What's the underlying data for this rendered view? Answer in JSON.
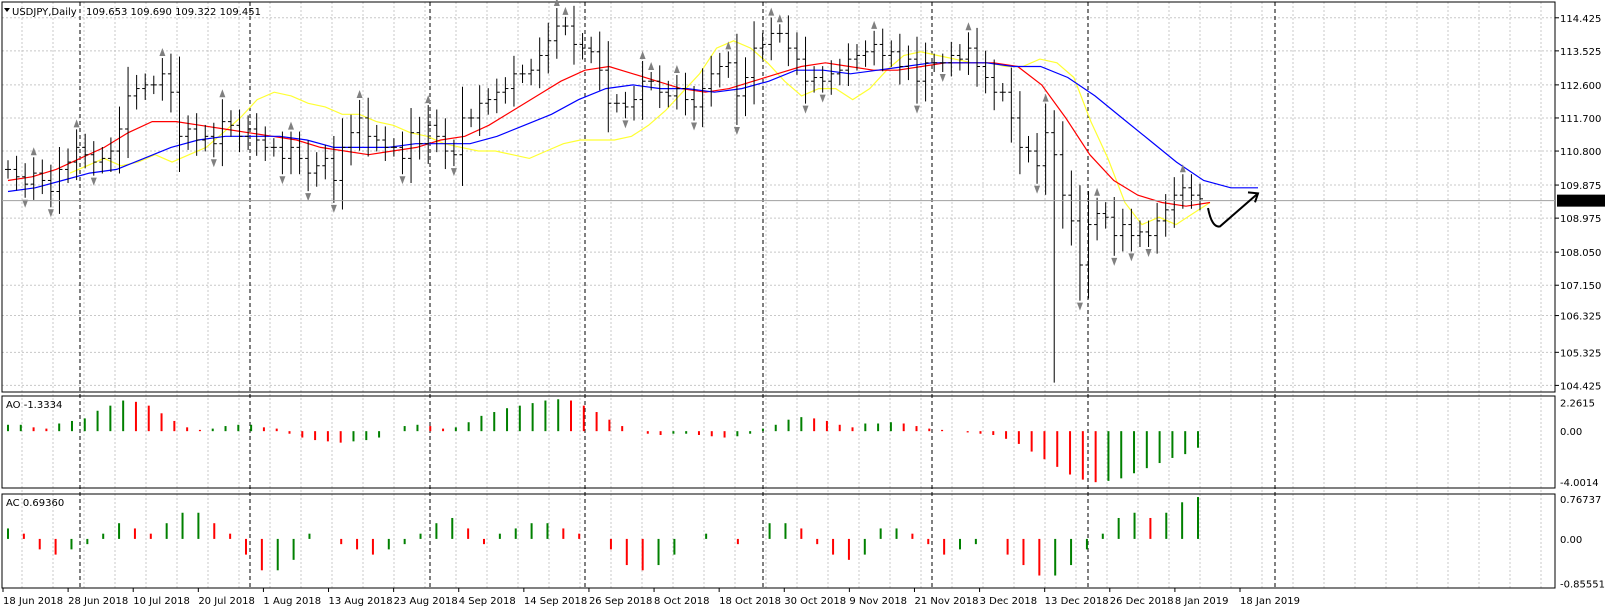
{
  "header": {
    "symbol": "USDJPY,Daily",
    "ohlc": "109.653 109.690 109.322 109.451"
  },
  "colors": {
    "background": "#ffffff",
    "grid": "#c8c8c8",
    "separator": "#000000",
    "bars": "#000000",
    "ma_fast": "#ffff33",
    "ma_mid": "#ff0000",
    "ma_slow": "#0000ff",
    "osc_up": "#008000",
    "osc_down": "#ff0000",
    "fractal": "#808080",
    "current_price_bg": "#000000",
    "current_price_text": "#ffffff"
  },
  "icons": {
    "fractal_up": "triangle-up",
    "fractal_down": "triangle-down",
    "arrow": "hand-drawn-arrow"
  },
  "chart_data": [
    {
      "type": "candlestick",
      "title": "USDJPY,Daily",
      "y_axis_labels": [
        "114.425",
        "113.525",
        "112.600",
        "111.700",
        "110.800",
        "109.875",
        "108.975",
        "108.050",
        "107.150",
        "106.325",
        "105.325",
        "104.425"
      ],
      "ylim": [
        104.3,
        114.8
      ],
      "current_price": "109.451",
      "x_tick_labels": [
        "18 Jun 2018",
        "28 Jun 2018",
        "10 Jul 2018",
        "20 Jul 2018",
        "1 Aug 2018",
        "13 Aug 2018",
        "23 Aug 2018",
        "4 Sep 2018",
        "14 Sep 2018",
        "26 Sep 2018",
        "8 Oct 2018",
        "18 Oct 2018",
        "30 Oct 2018",
        "9 Nov 2018",
        "21 Nov 2018",
        "3 Dec 2018",
        "13 Dec 2018",
        "26 Dec 2018",
        "8 Jan 2019",
        "18 Jan 2019"
      ],
      "close": [
        110.3,
        110.1,
        109.9,
        110.2,
        110.0,
        109.7,
        110.3,
        110.5,
        110.9,
        110.7,
        110.5,
        110.6,
        110.8,
        111.4,
        112.3,
        112.5,
        112.6,
        112.6,
        112.9,
        112.4,
        111.2,
        111.4,
        111.1,
        111.2,
        111.0,
        111.6,
        111.5,
        111.2,
        111.4,
        111.1,
        110.9,
        110.9,
        110.6,
        110.9,
        110.6,
        110.2,
        110.4,
        110.6,
        110.0,
        110.9,
        111.3,
        111.7,
        111.2,
        111.1,
        110.9,
        110.9,
        110.6,
        111.3,
        111.0,
        111.5,
        111.2,
        110.8,
        110.7,
        111.7,
        111.7,
        112.1,
        112.2,
        112.4,
        112.5,
        112.9,
        112.9,
        113.0,
        113.4,
        113.8,
        114.2,
        114.2,
        113.7,
        113.6,
        113.5,
        113.0,
        112.1,
        112.1,
        112.0,
        112.2,
        112.7,
        112.7,
        112.4,
        112.3,
        112.5,
        112.2,
        112.0,
        112.5,
        112.9,
        113.1,
        113.2,
        112.3,
        112.8,
        113.6,
        113.7,
        114.0,
        114.0,
        113.6,
        113.3,
        112.7,
        112.8,
        112.7,
        112.9,
        113.0,
        113.3,
        113.4,
        113.5,
        113.7,
        113.4,
        113.5,
        113.1,
        113.3,
        112.7,
        113.2,
        113.2,
        113.2,
        113.4,
        113.3,
        113.6,
        113.1,
        112.8,
        112.4,
        112.4,
        111.7,
        110.9,
        110.8,
        110.4,
        111.3,
        110.7,
        109.6,
        108.9,
        107.7,
        108.8,
        109.1,
        109.0,
        108.5,
        108.8,
        108.5,
        108.6,
        108.5,
        108.9,
        109.2,
        109.6,
        109.8,
        109.6,
        109.5
      ],
      "series": [
        {
          "name": "ma_fast",
          "values": [
            110.2,
            110.4,
            110.6,
            110.4,
            110.5,
            110.7,
            110.5,
            110.7,
            110.9,
            111.3,
            111.7,
            112.2,
            112.4,
            112.3,
            112.1,
            112.0,
            111.8,
            111.8,
            111.6,
            111.5,
            111.3,
            111.2,
            111.0,
            110.9,
            110.8,
            110.8,
            110.7,
            110.6,
            110.8,
            111.0,
            111.1,
            111.1,
            111.1,
            111.2,
            111.5,
            111.9,
            112.4,
            112.9,
            113.6,
            113.8,
            113.6,
            113.2,
            112.7,
            112.3,
            112.5,
            112.5,
            112.2,
            112.5,
            113.0,
            113.4,
            113.5,
            113.4,
            113.3,
            113.2,
            113.2,
            113.1,
            113.1,
            113.3,
            113.2,
            112.8,
            111.6,
            110.6,
            109.4,
            108.8,
            109.0,
            108.8,
            109.1,
            109.4
          ]
        },
        {
          "name": "ma_mid",
          "values": [
            110.0,
            110.1,
            110.3,
            110.6,
            110.9,
            111.3,
            111.6,
            111.6,
            111.5,
            111.4,
            111.3,
            111.2,
            111.1,
            110.9,
            110.8,
            110.7,
            110.8,
            110.9,
            111.1,
            111.2,
            111.5,
            111.9,
            112.3,
            112.7,
            113.0,
            113.1,
            112.9,
            112.7,
            112.5,
            112.4,
            112.5,
            112.7,
            112.9,
            113.1,
            113.2,
            113.1,
            113.0,
            113.0,
            113.1,
            113.2,
            113.2,
            113.2,
            113.1,
            112.6,
            111.7,
            110.7,
            110.0,
            109.6,
            109.4,
            109.3,
            109.4
          ]
        },
        {
          "name": "ma_slow",
          "values": [
            109.7,
            109.8,
            110.0,
            110.2,
            110.3,
            110.6,
            110.9,
            111.1,
            111.2,
            111.2,
            111.2,
            111.1,
            110.9,
            110.9,
            110.9,
            111.0,
            111.0,
            111.0,
            111.2,
            111.5,
            111.8,
            112.2,
            112.5,
            112.6,
            112.5,
            112.5,
            112.4,
            112.5,
            112.7,
            113.0,
            113.0,
            112.9,
            113.0,
            113.1,
            113.2,
            113.2,
            113.2,
            113.1,
            113.1,
            112.8,
            112.3,
            111.7,
            111.1,
            110.5,
            110.0,
            109.8,
            109.8
          ]
        },
        {
          "name": "AO -1.3334",
          "values": [
            0.5,
            0.5,
            0.3,
            0.2,
            0.6,
            0.8,
            1.0,
            1.6,
            2.0,
            2.4,
            2.3,
            2.0,
            1.4,
            0.8,
            0.3,
            0.1,
            0.2,
            0.4,
            0.5,
            0.5,
            0.3,
            0.2,
            -0.2,
            -0.5,
            -0.7,
            -0.8,
            -0.9,
            -0.8,
            -0.7,
            -0.5,
            0.0,
            0.4,
            0.5,
            0.4,
            0.2,
            0.3,
            0.7,
            1.2,
            1.5,
            1.8,
            2.0,
            2.2,
            2.4,
            2.5,
            2.4,
            2.0,
            1.5,
            0.9,
            0.4,
            0.0,
            -0.2,
            -0.3,
            -0.2,
            -0.2,
            -0.3,
            -0.4,
            -0.5,
            -0.4,
            -0.2,
            0.2,
            0.5,
            0.9,
            1.1,
            1.0,
            0.8,
            0.5,
            0.3,
            0.6,
            0.6,
            0.7,
            0.6,
            0.4,
            0.2,
            0.1,
            0.0,
            -0.1,
            -0.2,
            -0.3,
            -0.6,
            -1.0,
            -1.6,
            -2.2,
            -2.8,
            -3.4,
            -3.8,
            -4.0,
            -3.9,
            -3.7,
            -3.3,
            -2.9,
            -2.5,
            -2.1,
            -1.8,
            -1.3
          ]
        },
        {
          "name": "AC 0.69360",
          "values": [
            0.2,
            0.1,
            -0.2,
            -0.3,
            -0.2,
            -0.1,
            0.1,
            0.3,
            0.2,
            0.1,
            0.3,
            0.5,
            0.5,
            0.3,
            0.1,
            -0.3,
            -0.6,
            -0.6,
            -0.4,
            0.1,
            0.0,
            -0.1,
            -0.2,
            -0.3,
            -0.2,
            -0.1,
            0.1,
            0.3,
            0.4,
            0.2,
            -0.1,
            0.1,
            0.2,
            0.3,
            0.3,
            0.2,
            0.1,
            0.0,
            -0.2,
            -0.5,
            -0.6,
            -0.5,
            -0.3,
            0.0,
            0.1,
            0.0,
            -0.1,
            0.0,
            0.3,
            0.3,
            0.2,
            -0.1,
            -0.3,
            -0.4,
            -0.3,
            0.2,
            0.2,
            0.1,
            -0.1,
            -0.3,
            -0.2,
            -0.1,
            0.0,
            -0.3,
            -0.5,
            -0.7,
            -0.7,
            -0.5,
            -0.2,
            0.1,
            0.4,
            0.5,
            0.4,
            0.5,
            0.7,
            0.8
          ]
        }
      ]
    },
    {
      "type": "bar",
      "title": "AO -1.3334",
      "y_axis_labels": [
        "2.2615",
        "0.00",
        "-4.0014"
      ],
      "ylim": [
        -4.3,
        2.6
      ]
    },
    {
      "type": "bar",
      "title": "AC 0.69360",
      "y_axis_labels": [
        "0.76737",
        "0.00",
        "-0.85551"
      ],
      "ylim": [
        -0.9,
        0.82
      ]
    }
  ]
}
